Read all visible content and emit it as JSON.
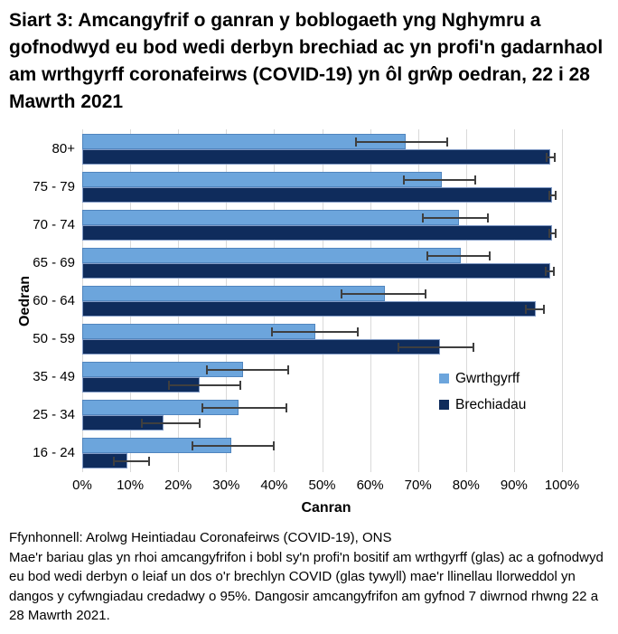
{
  "title": "Siart 3: Amcangyfrif o ganran y boblogaeth yng Nghymru a gofnodwyd eu bod wedi derbyn brechiad ac yn profi'n gadarnhaol am wrthgyrff coronafeirws (COVID-19) yn ôl grŵp oedran, 22 i 28 Mawrth 2021",
  "chart_data": {
    "type": "bar",
    "orientation": "horizontal",
    "title": "Siart 3: Amcangyfrif o ganran y boblogaeth yng Nghymru a gofnodwyd eu bod wedi derbyn brechiad ac yn profi'n gadarnhaol am wrthgyrff coronafeirws (COVID-19) yn ôl grŵp oedran, 22 i 28 Mawrth 2021",
    "xlabel": "Canran",
    "ylabel": "Oedran",
    "xlim": [
      0,
      100
    ],
    "xticks": [
      "0%",
      "10%",
      "20%",
      "30%",
      "40%",
      "50%",
      "60%",
      "70%",
      "80%",
      "90%",
      "100%"
    ],
    "grid": "vertical",
    "error_bars": "95% credible intervals shown as horizontal lines",
    "legend_position": "middle-right",
    "categories": [
      "80+",
      "75 - 79",
      "70 - 74",
      "65 - 69",
      "60 - 64",
      "50 - 59",
      "35 - 49",
      "25 - 34",
      "16 - 24"
    ],
    "series": [
      {
        "name": "Gwrthgyrff",
        "color": "#6CA5DC",
        "values": [
          67.5,
          75,
          78.5,
          79,
          63,
          48.5,
          33.5,
          32.5,
          31
        ],
        "ci_low": [
          57,
          67,
          71,
          72,
          54,
          39.5,
          26,
          25,
          23
        ],
        "ci_high": [
          76,
          82,
          84.5,
          85,
          71.5,
          57.5,
          43,
          42.5,
          40
        ]
      },
      {
        "name": "Brechiadau",
        "color": "#0F2C5C",
        "values": [
          97.5,
          98,
          98,
          97.5,
          94.5,
          74.5,
          24.5,
          17,
          9.5
        ],
        "ci_low": [
          96.8,
          97.3,
          97.3,
          96.6,
          92.5,
          66,
          18,
          12.5,
          6.5
        ],
        "ci_high": [
          98.4,
          98.7,
          98.7,
          98.3,
          96.2,
          81.5,
          33,
          24.5,
          14
        ]
      }
    ]
  },
  "footer": {
    "source": "Ffynhonnell: Arolwg Heintiadau Coronafeirws (COVID-19), ONS",
    "note": "Mae'r bariau glas yn rhoi amcangyfrifon i bobl sy'n profi'n bositif am wrthgyrff (glas) ac a gofnodwyd eu bod wedi derbyn o leiaf un dos o'r brechlyn COVID (glas tywyll) mae'r llinellau llorweddol yn dangos y cyfwngiadau credadwy o 95%. Dangosir amcangyfrifon am gyfnod 7 diwrnod rhwng 22 a 28 Mawrth 2021."
  },
  "colors": {
    "antibodies_bar": "#6CA5DC",
    "vaccinations_bar": "#0F2C5C",
    "gridline": "#D9D9D9",
    "error_bar": "#3F3F3F",
    "text": "#000000",
    "background": "#FFFFFF"
  }
}
